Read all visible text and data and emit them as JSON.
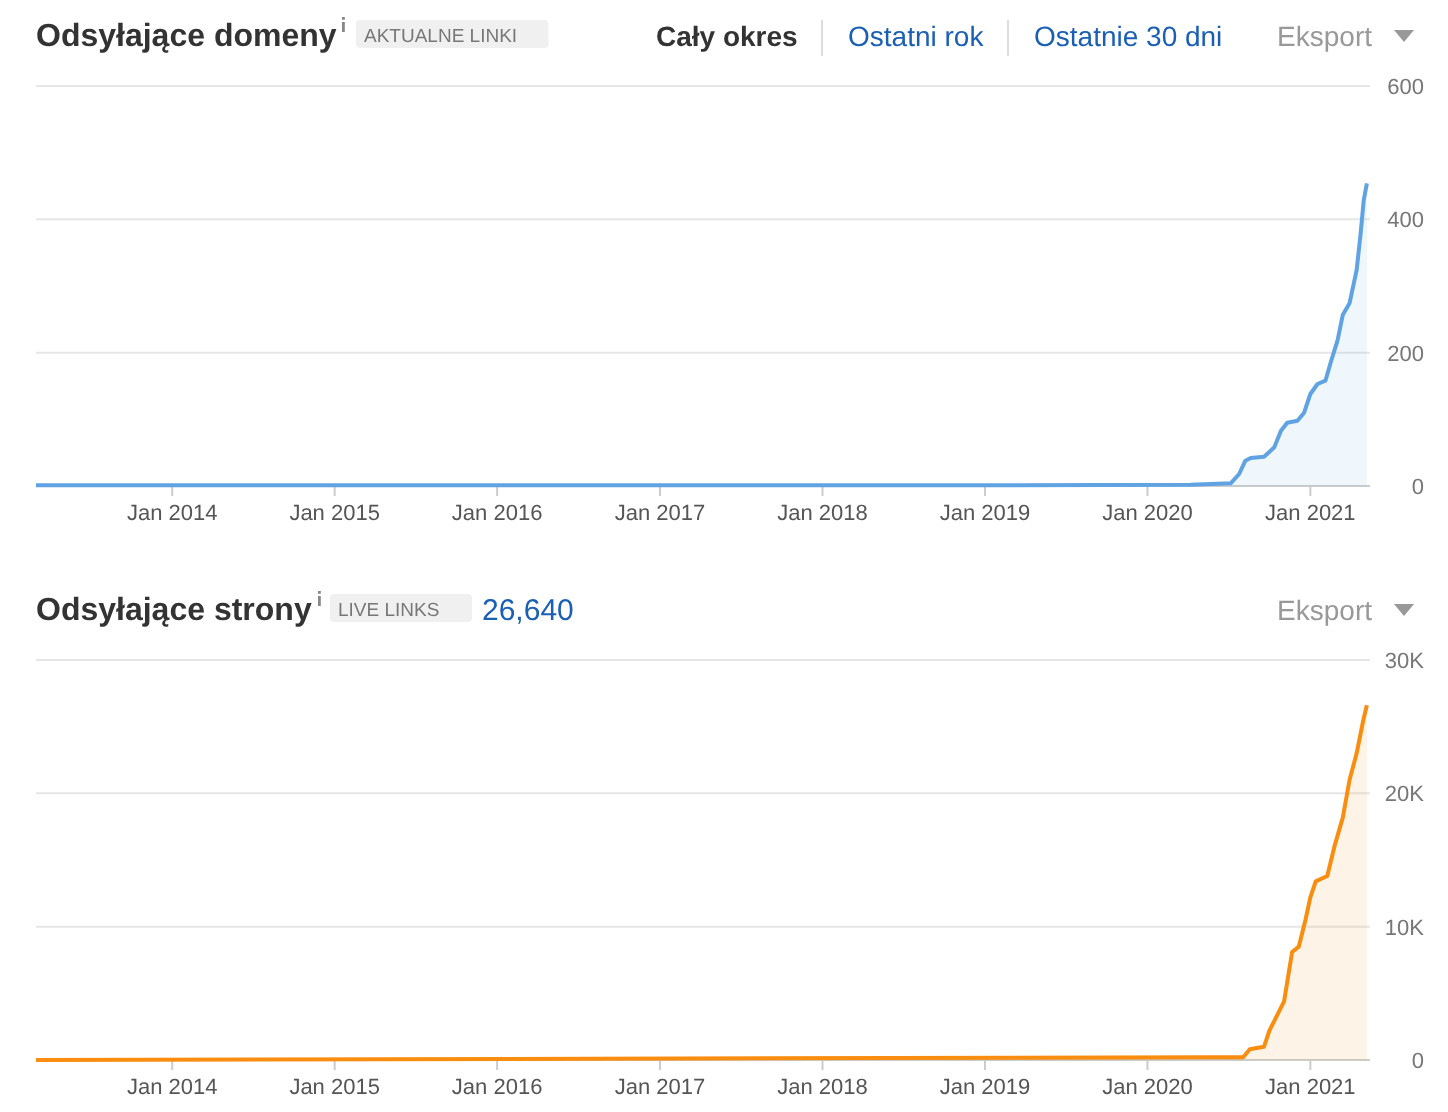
{
  "chart_data": [
    {
      "type": "area",
      "title": "Odsyłające domeny",
      "subtitle": "AKTUALNE LINKI",
      "annotations": [
        "Cały okres",
        "Ostatni rok",
        "Ostatnie 30 dni",
        "Eksport"
      ],
      "x": [
        "2013-03-01",
        "2019-01-01",
        "2020-04-07",
        "2020-07-06",
        "2020-07-25",
        "2020-08-08",
        "2020-08-20",
        "2020-09-19",
        "2020-10-12",
        "2020-10-27",
        "2020-11-10",
        "2020-12-03",
        "2020-12-18",
        "2021-01-01",
        "2021-01-17",
        "2021-02-04",
        "2021-02-16",
        "2021-03-03",
        "2021-03-15",
        "2021-03-30",
        "2021-04-15",
        "2021-04-24",
        "2021-05-01",
        "2021-05-08"
      ],
      "series": [
        {
          "color": "#5fa3e3",
          "values": [
            1,
            1,
            2,
            4,
            18,
            38,
            42,
            44,
            58,
            83,
            95,
            98,
            110,
            138,
            153,
            158,
            186,
            218,
            257,
            274,
            324,
            379,
            429,
            454
          ]
        }
      ],
      "xlim": [
        "2013-03-01",
        "2021-05-15"
      ],
      "ylim": [
        0,
        600
      ],
      "yticks": [
        0,
        200,
        400,
        600
      ],
      "xticks": [
        {
          "value": "2014-01-01",
          "label": "Jan 2014"
        },
        {
          "value": "2015-01-01",
          "label": "Jan 2015"
        },
        {
          "value": "2016-01-01",
          "label": "Jan 2016"
        },
        {
          "value": "2017-01-01",
          "label": "Jan 2017"
        },
        {
          "value": "2018-01-01",
          "label": "Jan 2018"
        },
        {
          "value": "2019-01-01",
          "label": "Jan 2019"
        },
        {
          "value": "2020-01-01",
          "label": "Jan 2020"
        },
        {
          "value": "2021-01-01",
          "label": "Jan 2021"
        }
      ],
      "grid": "y"
    },
    {
      "type": "area",
      "title": "Odsyłające strony",
      "subtitle": "LIVE LINKS",
      "annotations": [
        "26,640",
        "Eksport"
      ],
      "x": [
        "2013-03-01",
        "2020-05-20",
        "2020-08-03",
        "2020-08-18",
        "2020-09-19",
        "2020-10-01",
        "2020-10-16",
        "2020-11-03",
        "2020-11-21",
        "2020-12-06",
        "2020-12-21",
        "2021-01-01",
        "2021-01-13",
        "2021-02-08",
        "2021-02-24",
        "2021-03-15",
        "2021-03-30",
        "2021-04-15",
        "2021-04-30",
        "2021-05-08"
      ],
      "series": [
        {
          "color": "#f88d0f",
          "values": [
            0,
            200,
            200,
            800,
            1000,
            2200,
            3200,
            4400,
            8100,
            8500,
            10500,
            12200,
            13400,
            13800,
            16000,
            18200,
            21000,
            23000,
            25500,
            26600
          ]
        }
      ],
      "xlim": [
        "2013-03-01",
        "2021-05-15"
      ],
      "ylim": [
        0,
        30000
      ],
      "yticks": [
        0,
        {
          "value": 10000,
          "label": "10K"
        },
        {
          "value": 20000,
          "label": "20K"
        },
        {
          "value": 30000,
          "label": "30K"
        }
      ],
      "xticks": [
        {
          "value": "2014-01-01",
          "label": "Jan 2014"
        },
        {
          "value": "2015-01-01",
          "label": "Jan 2015"
        },
        {
          "value": "2016-01-01",
          "label": "Jan 2016"
        },
        {
          "value": "2017-01-01",
          "label": "Jan 2017"
        },
        {
          "value": "2018-01-01",
          "label": "Jan 2018"
        },
        {
          "value": "2019-01-01",
          "label": "Jan 2019"
        },
        {
          "value": "2020-01-01",
          "label": "Jan 2020"
        },
        {
          "value": "2021-01-01",
          "label": "Jan 2021"
        }
      ],
      "grid": "y"
    }
  ]
}
